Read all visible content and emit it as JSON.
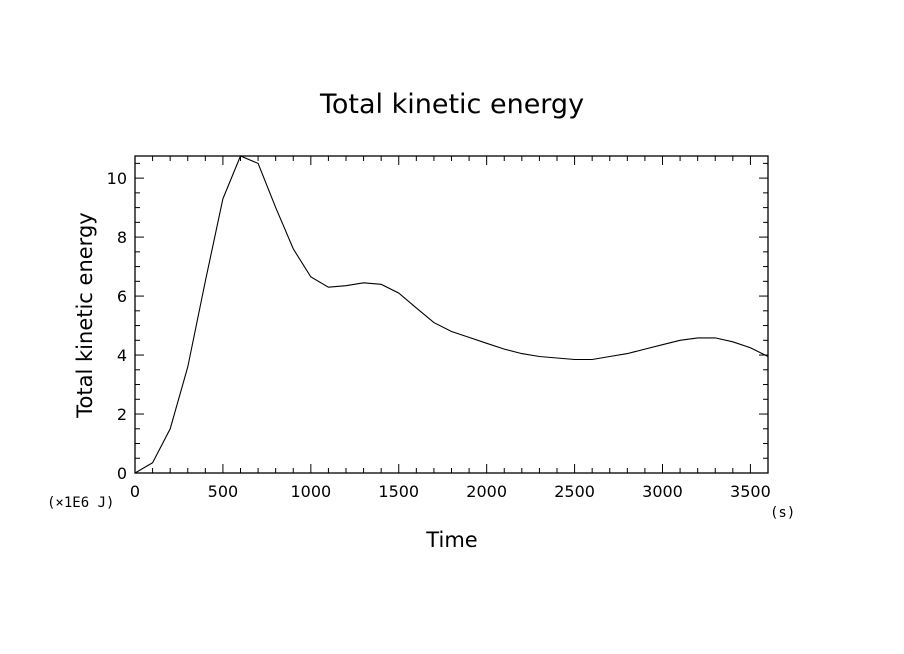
{
  "chart_data": {
    "type": "line",
    "title": "Total kinetic energy",
    "xlabel": "Time",
    "ylabel": "Total kinetic energy",
    "x_unit": "(s)",
    "y_unit": "(×1E6 J)",
    "xlim": [
      0,
      3600
    ],
    "ylim": [
      0,
      10.75
    ],
    "xticks": [
      0,
      500,
      1000,
      1500,
      2000,
      2500,
      3000,
      3500
    ],
    "yticks": [
      0,
      2,
      4,
      6,
      8,
      10
    ],
    "grid": false,
    "x": [
      0,
      100,
      200,
      300,
      400,
      500,
      600,
      700,
      800,
      900,
      1000,
      1100,
      1200,
      1300,
      1400,
      1500,
      1600,
      1700,
      1800,
      1900,
      2000,
      2100,
      2200,
      2300,
      2400,
      2500,
      2600,
      2700,
      2800,
      2900,
      3000,
      3100,
      3200,
      3300,
      3400,
      3500,
      3600
    ],
    "series": [
      {
        "values": [
          0,
          0.35,
          1.5,
          3.6,
          6.5,
          9.3,
          10.75,
          10.5,
          9.0,
          7.6,
          6.65,
          6.3,
          6.35,
          6.45,
          6.4,
          6.1,
          5.6,
          5.1,
          4.8,
          4.6,
          4.4,
          4.2,
          4.05,
          3.95,
          3.9,
          3.85,
          3.85,
          3.95,
          4.05,
          4.2,
          4.35,
          4.5,
          4.58,
          4.58,
          4.45,
          4.25,
          3.95
        ]
      }
    ]
  }
}
